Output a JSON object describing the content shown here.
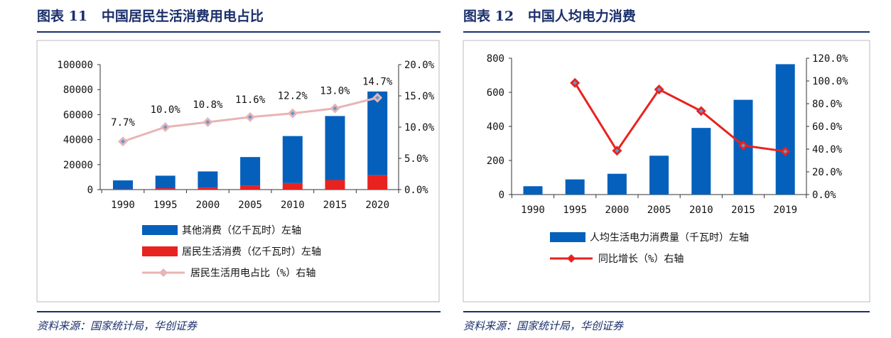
{
  "left": {
    "title": "图表 11   中国居民生活消费用电占比",
    "source": "资料来源：国家统计局，华创证券"
  },
  "right": {
    "title": "图表 12   中国人均电力消费",
    "source": "资料来源：国家统计局，华创证券"
  },
  "colors": {
    "blue": "#0560bb",
    "red": "#e8221f",
    "pink": "#e8b4b4",
    "header": "#1a2f6b"
  },
  "chart_data": [
    {
      "type": "bar",
      "stacked": true,
      "categories": [
        "1990",
        "1995",
        "2000",
        "2005",
        "2010",
        "2015",
        "2020"
      ],
      "series": [
        {
          "name": "其他消费（亿千瓦时）左轴",
          "axis": "left",
          "values": [
            6790,
            10020,
            12960,
            23020,
            37600,
            51220,
            66950
          ]
        },
        {
          "name": "居民生活消费（亿千瓦时）左轴",
          "axis": "left",
          "values": [
            570,
            1110,
            1570,
            3020,
            5230,
            7650,
            11540
          ]
        },
        {
          "name": "居民生活用电占比（%）右轴",
          "axis": "right",
          "type": "line",
          "values": [
            7.7,
            10.0,
            10.8,
            11.6,
            12.2,
            13.0,
            14.7
          ],
          "labels": [
            "7.7%",
            "10.0%",
            "10.8%",
            "11.6%",
            "12.2%",
            "13.0%",
            "14.7%"
          ]
        }
      ],
      "ylim": [
        0,
        100000
      ],
      "yticks": [
        "0",
        "20000",
        "40000",
        "60000",
        "80000",
        "100000"
      ],
      "y2lim": [
        0,
        20
      ],
      "y2ticks": [
        "0.0%",
        "5.0%",
        "10.0%",
        "15.0%",
        "20.0%"
      ],
      "legend": "bottom"
    },
    {
      "type": "bar",
      "categories": [
        "1990",
        "1995",
        "2000",
        "2005",
        "2010",
        "2015",
        "2019"
      ],
      "series": [
        {
          "name": "人均生活电力消费量（千瓦时）左轴",
          "axis": "left",
          "values": [
            49,
            89,
            122,
            228,
            391,
            556,
            765
          ]
        },
        {
          "name": "同比增长（%）右轴",
          "axis": "right",
          "type": "line",
          "values": [
            null,
            98.3,
            38.6,
            92.5,
            73.5,
            43.2,
            38.0
          ]
        }
      ],
      "ylim": [
        0,
        800
      ],
      "yticks": [
        "0",
        "200",
        "400",
        "600",
        "800"
      ],
      "y2lim": [
        0,
        120
      ],
      "y2ticks": [
        "0.0%",
        "20.0%",
        "40.0%",
        "60.0%",
        "80.0%",
        "100.0%",
        "120.0%"
      ],
      "legend": "bottom"
    }
  ]
}
